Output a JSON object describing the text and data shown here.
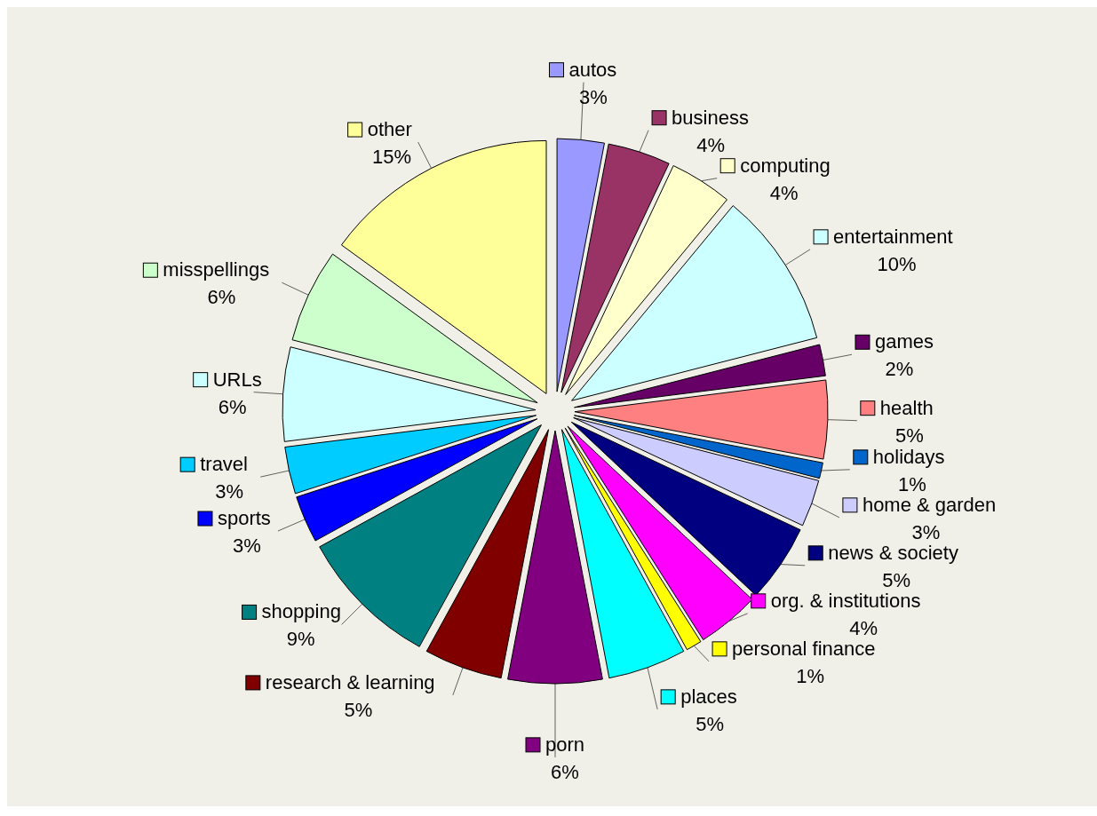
{
  "chart_data": {
    "type": "pie",
    "categories": [
      "autos",
      "business",
      "computing",
      "entertainment",
      "games",
      "health",
      "holidays",
      "home & garden",
      "news & society",
      "org. & institutions",
      "personal finance",
      "places",
      "porn",
      "research & learning",
      "shopping",
      "sports",
      "travel",
      "URLs",
      "misspellings",
      "other"
    ],
    "values": [
      3,
      4,
      4,
      10,
      2,
      5,
      1,
      3,
      5,
      4,
      1,
      5,
      6,
      5,
      9,
      3,
      3,
      6,
      6,
      15
    ],
    "value_labels": [
      "3%",
      "4%",
      "4%",
      "10%",
      "2%",
      "5%",
      "1%",
      "3%",
      "5%",
      "4%",
      "1%",
      "5%",
      "6%",
      "5%",
      "9%",
      "3%",
      "3%",
      "6%",
      "6%",
      "15%"
    ],
    "colors": [
      "#9999ff",
      "#993366",
      "#ffffcc",
      "#ccffff",
      "#660066",
      "#ff8080",
      "#0066cc",
      "#ccccff",
      "#000080",
      "#ff00ff",
      "#ffff00",
      "#00ffff",
      "#800080",
      "#800000",
      "#008080",
      "#0000ff",
      "#00ccff",
      "#ccffff",
      "#ccffcc",
      "#ffff99"
    ],
    "legend": "top right"
  }
}
